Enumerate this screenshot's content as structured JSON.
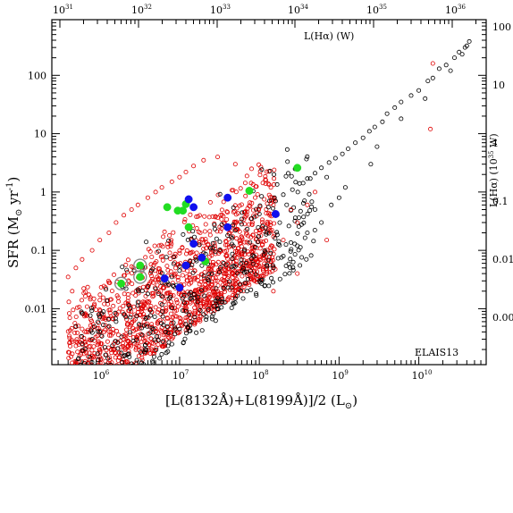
{
  "chart_data": {
    "type": "scatter",
    "xlabel": "[L(8132Å)+L(8199Å)]/2 (L",
    "xlabel_unit_symbol": "⊙",
    "xlabel_close": ")",
    "ylabel": "SFR (M",
    "ylabel_unit_symbol": "⊙",
    "ylabel_rest": " yr",
    "ylabel_exp": "-1",
    "ylabel_close": ")",
    "top_axis_label": "L(Hα) (W)",
    "right_axis_label": "L(Hα) (10",
    "right_axis_label_exp": "35",
    "right_axis_label_close": " W)",
    "annotation": "ELAIS13",
    "x_scale": "log",
    "y_scale": "log",
    "xlim": [
      250000,
      70000000000
    ],
    "ylim": [
      0.0011,
      900
    ],
    "x_ticks": [
      {
        "base": "10",
        "exp": "6",
        "value": 1000000
      },
      {
        "base": "10",
        "exp": "7",
        "value": 10000000
      },
      {
        "base": "10",
        "exp": "8",
        "value": 100000000
      },
      {
        "base": "10",
        "exp": "9",
        "value": 1000000000
      },
      {
        "base": "10",
        "exp": "10",
        "value": 10000000000
      }
    ],
    "y_ticks": [
      {
        "label": "100",
        "value": 100
      },
      {
        "label": "10",
        "value": 10
      },
      {
        "label": "1",
        "value": 1
      },
      {
        "label": "0.1",
        "value": 0.1
      },
      {
        "label": "0.01",
        "value": 0.01
      }
    ],
    "top_ticks": [
      {
        "base": "10",
        "exp": "31"
      },
      {
        "base": "10",
        "exp": "32"
      },
      {
        "base": "10",
        "exp": "33"
      },
      {
        "base": "10",
        "exp": "34"
      },
      {
        "base": "10",
        "exp": "35"
      },
      {
        "base": "10",
        "exp": "36"
      }
    ],
    "right_ticks": [
      "100",
      "10",
      "1",
      "0.1",
      "0.01",
      "0.00"
    ],
    "colors": {
      "black_series": "#000000",
      "red_series": "#e00000",
      "green_series": "#22dd22",
      "blue_series": "#1010ee",
      "grey_ring": "#888888"
    },
    "series": [
      {
        "marker": "open-circle",
        "color": "#000000",
        "points": [
          [
            43000000000.0,
            380
          ],
          [
            38000000000.0,
            300
          ],
          [
            32000000000.0,
            250
          ],
          [
            28000000000.0,
            200
          ],
          [
            22000000000.0,
            150
          ],
          [
            18000000000.0,
            130
          ],
          [
            15000000000.0,
            90
          ],
          [
            13000000000.0,
            80
          ],
          [
            10000000000.0,
            55
          ],
          [
            8000000000.0,
            45
          ],
          [
            6000000000.0,
            35
          ],
          [
            5000000000.0,
            28
          ],
          [
            4000000000.0,
            22
          ],
          [
            3500000000.0,
            16
          ],
          [
            2800000000.0,
            13
          ],
          [
            2400000000.0,
            11
          ],
          [
            2000000000.0,
            8.5
          ],
          [
            1600000000.0,
            7
          ],
          [
            1300000000.0,
            5.5
          ],
          [
            1100000000.0,
            4.5
          ],
          [
            900000000.0,
            3.8
          ],
          [
            750000000.0,
            3.2
          ],
          [
            600000000.0,
            2.6
          ],
          [
            500000000.0,
            2.1
          ],
          [
            400000000.0,
            1.7
          ],
          [
            320000000.0,
            1.4
          ],
          [
            260000000.0,
            1.1
          ],
          [
            200000000.0,
            0.9
          ],
          [
            160000000.0,
            0.7
          ],
          [
            130000000.0,
            0.55
          ],
          [
            100000000.0,
            0.42
          ],
          [
            80000000.0,
            0.35
          ],
          [
            60000000.0,
            0.28
          ],
          [
            50000000.0,
            0.22
          ],
          [
            40000000.0,
            0.18
          ],
          [
            32000000.0,
            0.14
          ],
          [
            26000000.0,
            0.11
          ],
          [
            20000000.0,
            0.09
          ],
          [
            16000000.0,
            0.07
          ],
          [
            13000000.0,
            0.055
          ],
          [
            10000000.0,
            0.045
          ],
          [
            8000000.0,
            0.035
          ],
          [
            6000000.0,
            0.028
          ],
          [
            5000000.0,
            0.022
          ],
          [
            4000000.0,
            0.018
          ],
          [
            3000000.0,
            0.013
          ],
          [
            2400000.0,
            0.01
          ],
          [
            2000000.0,
            0.008
          ],
          [
            1600000.0,
            0.006
          ],
          [
            1300000.0,
            0.005
          ],
          [
            1000000.0,
            0.004
          ],
          [
            800000.0,
            0.003
          ],
          [
            600000.0,
            0.0025
          ],
          [
            500000.0,
            0.005
          ],
          [
            600000000.0,
            0.3
          ],
          [
            400000000.0,
            0.2
          ],
          [
            300000000.0,
            0.12
          ],
          [
            200000000.0,
            0.08
          ],
          [
            150000000.0,
            0.05
          ],
          [
            100000000.0,
            0.03
          ],
          [
            70000000.0,
            0.02
          ],
          [
            50000000.0,
            0.015
          ],
          [
            30000000.0,
            0.01
          ],
          [
            20000000.0,
            0.008
          ],
          [
            14000000.0,
            0.006
          ],
          [
            10000000.0,
            0.0045
          ],
          [
            800000000.0,
            0.6
          ],
          [
            1200000000.0,
            1.2
          ],
          [
            2500000000.0,
            3.0
          ],
          [
            3000000000.0,
            6.0
          ],
          [
            6000000000.0,
            18
          ],
          [
            12000000000.0,
            40
          ],
          [
            25000000000.0,
            120
          ],
          [
            35000000000.0,
            230
          ],
          [
            40000000000.0,
            320
          ],
          [
            1000000000.0,
            0.8
          ],
          [
            700000000.0,
            1.8
          ],
          [
            500000000.0,
            0.5
          ]
        ]
      },
      {
        "marker": "open-circle",
        "color": "#e00000",
        "points": [
          [
            15000000000.0,
            160
          ],
          [
            14000000000.0,
            12
          ],
          [
            80000000.0,
            2.5
          ],
          [
            50000000.0,
            3.0
          ],
          [
            30000000.0,
            4.0
          ],
          [
            20000000.0,
            3.5
          ],
          [
            15000000.0,
            2.8
          ],
          [
            12000000.0,
            2.2
          ],
          [
            10000000.0,
            1.8
          ],
          [
            8000000.0,
            1.5
          ],
          [
            6000000.0,
            1.2
          ],
          [
            5000000.0,
            1.0
          ],
          [
            4000000.0,
            0.8
          ],
          [
            3000000.0,
            0.6
          ],
          [
            2500000.0,
            0.5
          ],
          [
            2000000.0,
            0.4
          ],
          [
            1600000.0,
            0.3
          ],
          [
            1300000.0,
            0.2
          ],
          [
            1000000.0,
            0.15
          ],
          [
            800000.0,
            0.1
          ],
          [
            600000.0,
            0.07
          ],
          [
            500000.0,
            0.05
          ],
          [
            400000.0,
            0.035
          ],
          [
            450000.0,
            0.02
          ],
          [
            300000000.0,
            0.3
          ],
          [
            200000000.0,
            0.15
          ],
          [
            120000000.0,
            0.08
          ],
          [
            80000000.0,
            0.05
          ],
          [
            50000000.0,
            0.03
          ],
          [
            30000000.0,
            0.02
          ],
          [
            20000000.0,
            0.012
          ],
          [
            12000000.0,
            0.007
          ],
          [
            8000000.0,
            0.005
          ],
          [
            5000000.0,
            0.004
          ],
          [
            3000000.0,
            0.0035
          ],
          [
            2000000.0,
            0.003
          ],
          [
            1500000.0,
            0.0025
          ],
          [
            1000000.0,
            0.002
          ],
          [
            600000.0,
            0.0045
          ],
          [
            400000000.0,
            0.6
          ],
          [
            500000000.0,
            1.0
          ],
          [
            250000000.0,
            0.5
          ],
          [
            100000000.0,
            0.2
          ],
          [
            60000000.0,
            0.09
          ],
          [
            40000000.0,
            0.06
          ],
          [
            700000000.0,
            0.15
          ],
          [
            300000000.0,
            0.04
          ],
          [
            150000000.0,
            0.02
          ]
        ]
      },
      {
        "marker": "filled-circle",
        "color": "#22dd22",
        "points": [
          [
            1850000.0,
            0.027
          ],
          [
            3200000.0,
            0.055
          ],
          [
            3200000.0,
            0.035
          ],
          [
            7000000.0,
            0.55
          ],
          [
            9500000.0,
            0.48
          ],
          [
            11000000.0,
            0.48
          ],
          [
            12000000.0,
            0.62
          ],
          [
            13000000.0,
            0.25
          ],
          [
            21000000.0,
            0.065
          ],
          [
            75000000.0,
            1.05
          ],
          [
            300000000.0,
            2.6
          ]
        ]
      },
      {
        "marker": "filled-circle",
        "color": "#1010ee",
        "points": [
          [
            13000000.0,
            0.75
          ],
          [
            15000000.0,
            0.55
          ],
          [
            15000000.0,
            0.13
          ],
          [
            12000000.0,
            0.055
          ],
          [
            19000000.0,
            0.075
          ],
          [
            40000000.0,
            0.8
          ],
          [
            40000000.0,
            0.25
          ],
          [
            160000000.0,
            0.42
          ],
          [
            6500000.0,
            0.033
          ],
          [
            10000000.0,
            0.023
          ]
        ]
      }
    ],
    "ringed_points": [
      [
        1850000.0,
        0.027
      ],
      [
        3200000.0,
        0.055
      ],
      [
        3200000.0,
        0.035
      ]
    ]
  }
}
